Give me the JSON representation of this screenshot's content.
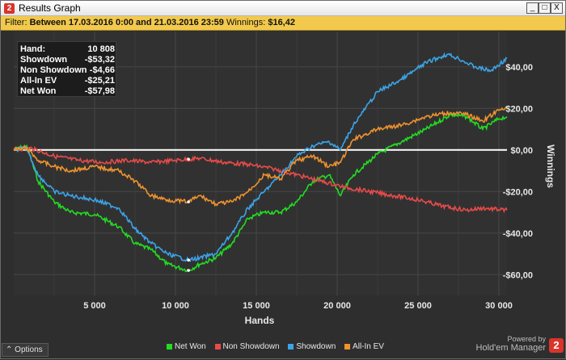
{
  "window": {
    "title": "Results Graph",
    "app_icon_glyph": "2",
    "minimize_glyph": "_",
    "maximize_glyph": "□",
    "close_glyph": "X"
  },
  "filter": {
    "prefix": "Filter:",
    "text": "Between 17.03.2016 0:00 and 21.03.2016 23:59",
    "winnings_label": "Winnings:",
    "winnings_value": "$16,42"
  },
  "stats": [
    {
      "label": "Hand:",
      "value": "10 808"
    },
    {
      "label": "Showdown",
      "value": "-$53,32"
    },
    {
      "label": "Non Showdown",
      "value": "-$4,66"
    },
    {
      "label": "All-In EV",
      "value": "-$25,21"
    },
    {
      "label": "Net Won",
      "value": "-$57,98"
    }
  ],
  "chart_data": {
    "type": "line",
    "xlabel": "Hands",
    "ylabel": "Winnings",
    "xlim": [
      0,
      30500
    ],
    "ylim": [
      -70,
      57
    ],
    "x_ticks": [
      5000,
      10000,
      15000,
      20000,
      25000,
      30000
    ],
    "x_tick_labels": [
      "5 000",
      "10 000",
      "15 000",
      "20 000",
      "25 000",
      "30 000"
    ],
    "y_ticks": [
      40,
      20,
      0,
      -20,
      -40,
      -60
    ],
    "y_tick_labels": [
      "$40,00",
      "$20,00",
      "$0,00",
      "-$20,00",
      "-$40,00",
      "-$60,00"
    ],
    "grid": true,
    "legend_position": "bottom",
    "highlight_x": 10808,
    "series": [
      {
        "name": "Net Won",
        "color": "#22dd22",
        "x": [
          0,
          800,
          1500,
          2500,
          3500,
          5000,
          6500,
          7500,
          8500,
          9500,
          10800,
          11500,
          12500,
          13500,
          14500,
          15500,
          16500,
          17500,
          18500,
          19500,
          20200,
          21000,
          22500,
          24000,
          25500,
          27000,
          28000,
          29000,
          30000,
          30500
        ],
        "values": [
          0,
          2,
          -15,
          -25,
          -30,
          -31,
          -37,
          -45,
          -48,
          -55,
          -58,
          -55,
          -52,
          -45,
          -33,
          -30,
          -30,
          -25,
          -15,
          -12,
          -22,
          -12,
          -2,
          4,
          10,
          17,
          16,
          10,
          15,
          16
        ]
      },
      {
        "name": "Non Showdown",
        "color": "#e84a4a",
        "x": [
          0,
          1000,
          2500,
          4000,
          5500,
          7000,
          8500,
          10000,
          11500,
          13000,
          14500,
          16000,
          17500,
          19000,
          20500,
          22000,
          23500,
          25000,
          26500,
          28000,
          29000,
          30500
        ],
        "values": [
          0,
          1,
          -3,
          -5,
          -6,
          -5,
          -6,
          -5,
          -4,
          -6,
          -7,
          -9,
          -12,
          -15,
          -18,
          -20,
          -22,
          -24,
          -27,
          -29,
          -28,
          -29
        ]
      },
      {
        "name": "Showdown",
        "color": "#3ba4e8",
        "x": [
          0,
          800,
          1500,
          2500,
          3500,
          5000,
          6500,
          7500,
          8500,
          9500,
          10800,
          11500,
          12500,
          13500,
          14500,
          15500,
          16500,
          17500,
          18500,
          19500,
          20200,
          21000,
          22500,
          24000,
          25500,
          26800,
          27500,
          28500,
          29500,
          30500
        ],
        "values": [
          0,
          1,
          -12,
          -20,
          -22,
          -24,
          -28,
          -38,
          -45,
          -50,
          -53,
          -52,
          -50,
          -40,
          -28,
          -20,
          -12,
          -3,
          2,
          4,
          0,
          12,
          28,
          34,
          42,
          46,
          44,
          40,
          38,
          44
        ]
      },
      {
        "name": "All-In EV",
        "color": "#f0922e",
        "x": [
          0,
          800,
          1500,
          2500,
          3500,
          5000,
          6500,
          7500,
          8500,
          9500,
          10800,
          11500,
          12500,
          13500,
          14500,
          15500,
          16500,
          17500,
          18500,
          19500,
          20200,
          21000,
          22500,
          24000,
          25500,
          27000,
          28000,
          29000,
          30000,
          30500
        ],
        "values": [
          0,
          1,
          -5,
          -8,
          -10,
          -8,
          -10,
          -15,
          -22,
          -24,
          -25,
          -22,
          -26,
          -25,
          -20,
          -12,
          -14,
          -5,
          -3,
          -8,
          -6,
          5,
          10,
          12,
          16,
          18,
          17,
          14,
          19,
          21
        ]
      }
    ]
  },
  "legend": [
    {
      "name": "Net Won",
      "color": "#22dd22"
    },
    {
      "name": "Non Showdown",
      "color": "#e84a4a"
    },
    {
      "name": "Showdown",
      "color": "#3ba4e8"
    },
    {
      "name": "All-In EV",
      "color": "#f0922e"
    }
  ],
  "footer": {
    "options_label": "Options",
    "options_icon": "chevron-up-icon",
    "options_glyph": "⌃",
    "brand_powered": "Powered by",
    "brand_name": "Hold'em Manager",
    "brand_logo_glyph": "2"
  }
}
